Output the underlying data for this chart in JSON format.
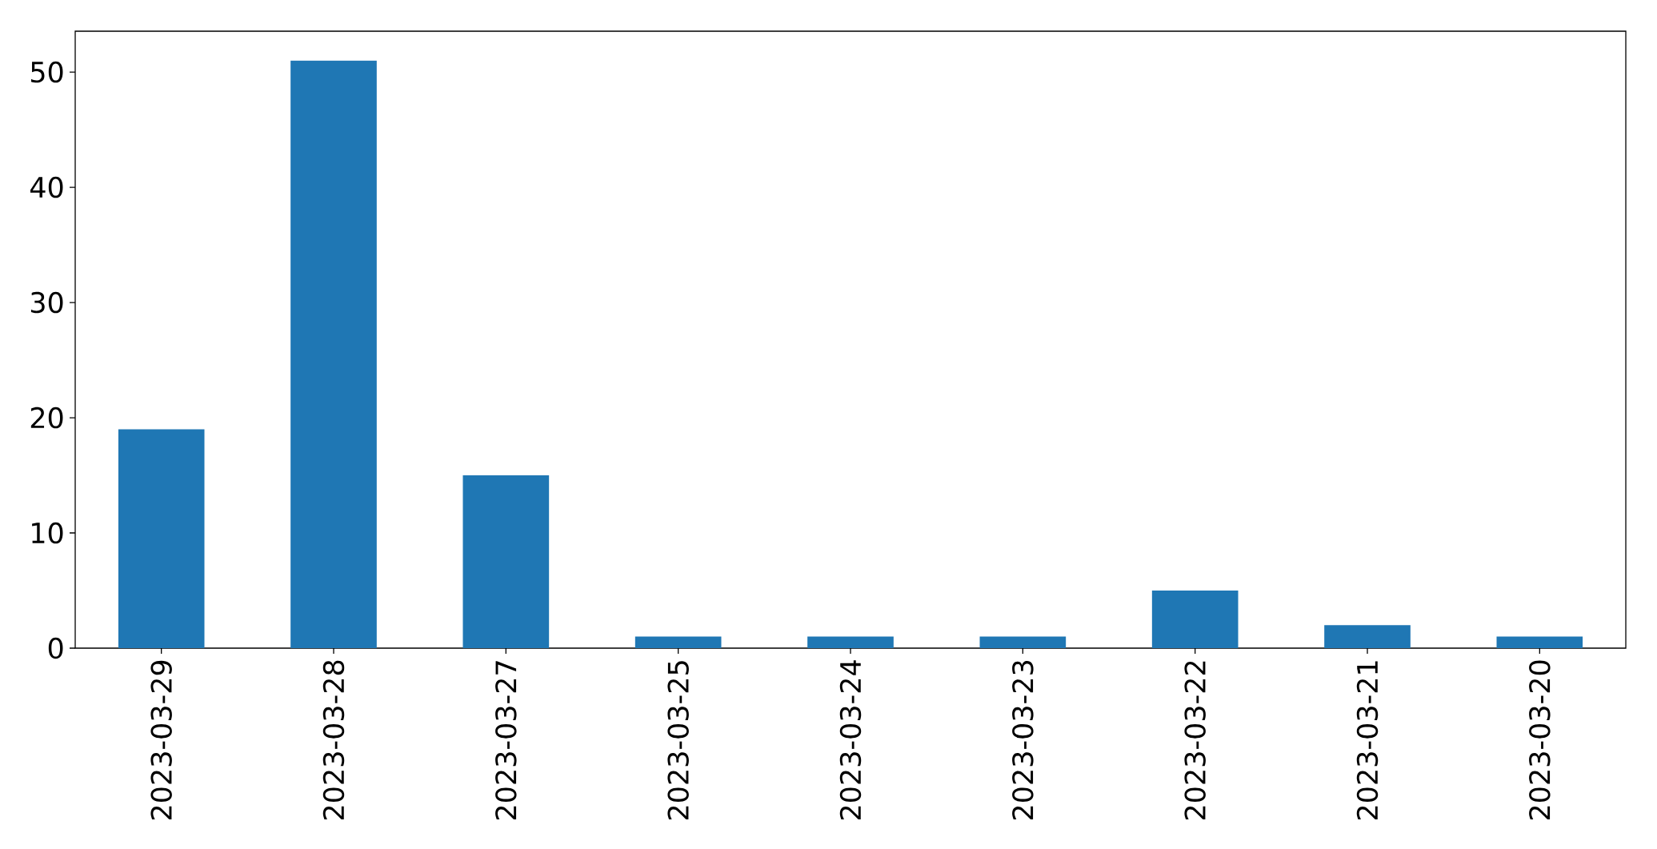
{
  "chart_data": {
    "type": "bar",
    "categories": [
      "2023-03-29",
      "2023-03-28",
      "2023-03-27",
      "2023-03-25",
      "2023-03-24",
      "2023-03-23",
      "2023-03-22",
      "2023-03-21",
      "2023-03-20"
    ],
    "values": [
      19,
      51,
      15,
      1,
      1,
      1,
      5,
      2,
      1
    ],
    "color": "#1f77b4",
    "ylim": [
      0,
      53.55
    ],
    "yticks": [
      0,
      10,
      20,
      30,
      40,
      50
    ]
  }
}
